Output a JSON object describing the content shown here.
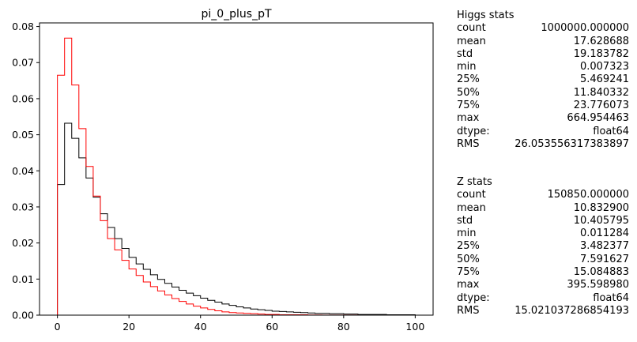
{
  "chart_data": {
    "type": "histogram",
    "title": "pi_0_plus_pT",
    "xlabel": "",
    "ylabel": "",
    "xlim": [
      -5,
      105
    ],
    "ylim": [
      0,
      0.081
    ],
    "x_ticks": [
      0,
      20,
      40,
      60,
      80,
      100
    ],
    "x_tick_labels": [
      "0",
      "20",
      "40",
      "60",
      "80",
      "100"
    ],
    "y_ticks": [
      0,
      0.01,
      0.02,
      0.03,
      0.04,
      0.05,
      0.06,
      0.07,
      0.08
    ],
    "y_tick_labels": [
      "0.00",
      "0.01",
      "0.02",
      "0.03",
      "0.04",
      "0.05",
      "0.06",
      "0.07",
      "0.08"
    ],
    "grid": false,
    "bin_edges": [
      0,
      2,
      4,
      6,
      8,
      10,
      12,
      14,
      16,
      18,
      20,
      22,
      24,
      26,
      28,
      30,
      32,
      34,
      36,
      38,
      40,
      42,
      44,
      46,
      48,
      50,
      52,
      54,
      56,
      58,
      60,
      62,
      64,
      66,
      68,
      70,
      72,
      74,
      76,
      78,
      80,
      82,
      84,
      86,
      88,
      90,
      92,
      94,
      96,
      98,
      100
    ],
    "series": [
      {
        "color": "#000000",
        "values": [
          0.0362,
          0.0532,
          0.049,
          0.0436,
          0.038,
          0.0327,
          0.0281,
          0.0243,
          0.0212,
          0.0185,
          0.016,
          0.0142,
          0.0127,
          0.0112,
          0.0099,
          0.0088,
          0.0078,
          0.0069,
          0.0061,
          0.0054,
          0.0047,
          0.0041,
          0.0036,
          0.0031,
          0.0027,
          0.0023,
          0.002,
          0.0017,
          0.0015,
          0.0013,
          0.0011,
          0.001,
          0.0009,
          0.0008,
          0.0007,
          0.0006,
          0.0005,
          0.0005,
          0.0004,
          0.0004,
          0.0003,
          0.0003,
          0.0002,
          0.0002,
          0.0002,
          0.0002,
          0.0001,
          0.0001,
          0.0001,
          0.0001
        ]
      },
      {
        "color": "#ff0000",
        "values": [
          0.0665,
          0.0768,
          0.0638,
          0.0517,
          0.0412,
          0.033,
          0.0262,
          0.0212,
          0.0181,
          0.0152,
          0.0128,
          0.011,
          0.0092,
          0.0079,
          0.0067,
          0.0056,
          0.0046,
          0.0038,
          0.0031,
          0.0025,
          0.002,
          0.0016,
          0.0012,
          0.0009,
          0.0007,
          0.0006,
          0.0005,
          0.0004,
          0.0003,
          0.0002,
          0.0002,
          0.0001,
          0.0001,
          0.0001,
          0.0001,
          5e-05,
          5e-05,
          4e-05,
          3e-05,
          3e-05,
          2e-05,
          2e-05,
          1e-05,
          1e-05,
          1e-05,
          1e-05,
          1e-05,
          1e-05,
          1e-05,
          1e-05
        ]
      }
    ]
  },
  "stats_blocks": [
    {
      "title": "Higgs stats",
      "rows": [
        {
          "key": "count",
          "value": "1000000.000000"
        },
        {
          "key": "mean",
          "value": "17.628688"
        },
        {
          "key": "std",
          "value": "19.183782"
        },
        {
          "key": "min",
          "value": "0.007323"
        },
        {
          "key": "25%",
          "value": "5.469241"
        },
        {
          "key": "50%",
          "value": "11.840332"
        },
        {
          "key": "75%",
          "value": "23.776073"
        },
        {
          "key": "max",
          "value": "664.954463"
        },
        {
          "key": "dtype:",
          "value": "float64"
        },
        {
          "key": "RMS",
          "value": "26.053556317383897"
        }
      ]
    },
    {
      "title": "Z stats",
      "rows": [
        {
          "key": "count",
          "value": "150850.000000"
        },
        {
          "key": "mean",
          "value": "10.832900"
        },
        {
          "key": "std",
          "value": "10.405795"
        },
        {
          "key": "min",
          "value": "0.011284"
        },
        {
          "key": "25%",
          "value": "3.482377"
        },
        {
          "key": "50%",
          "value": "7.591627"
        },
        {
          "key": "75%",
          "value": "15.084883"
        },
        {
          "key": "max",
          "value": "395.598980"
        },
        {
          "key": "dtype:",
          "value": "float64"
        },
        {
          "key": "RMS",
          "value": "15.021037286854193"
        }
      ]
    }
  ]
}
